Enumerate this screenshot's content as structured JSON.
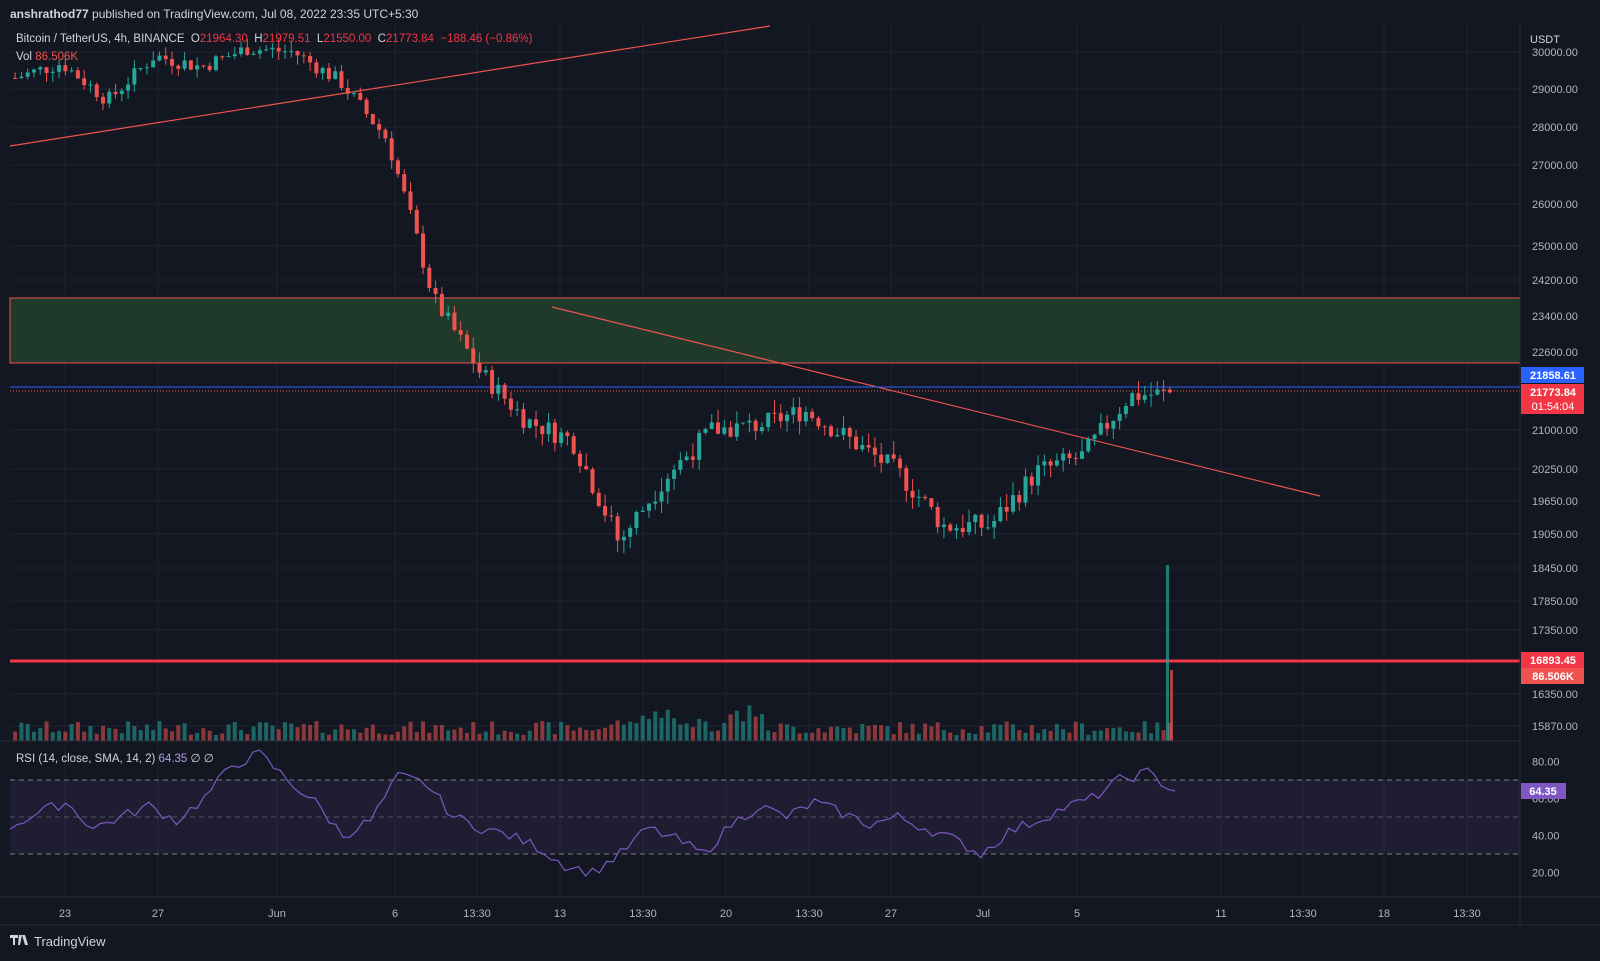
{
  "header": {
    "publisher": "anshrathod77",
    "published_text": "published on TradingView.com, Jul 08, 2022 23:35 UTC+5:30"
  },
  "legend": {
    "symbol": "Bitcoin / TetherUS, 4h, BINANCE",
    "open_label": "O",
    "open": "21964.30",
    "high_label": "H",
    "high": "21979.51",
    "low_label": "L",
    "low": "21550.00",
    "close_label": "C",
    "close": "21773.84",
    "change": "−188.46 (−0.86%)",
    "vol_label": "Vol",
    "vol": "86.506K"
  },
  "rsi_legend": {
    "label": "RSI (14, close, SMA, 14, 2)",
    "value": "64.35",
    "extra": "∅ ∅"
  },
  "footer": {
    "logo_icon": "tradingview-logo-icon",
    "brand": "TradingView"
  },
  "colors": {
    "background": "#131722",
    "grid": "#1e2330",
    "up": "#26a69a",
    "down": "#ef5350",
    "blue_line": "#2962ff",
    "zone_fill": "#1f3a2a",
    "rsi_line": "#7e57c2",
    "text": "#b2b5be"
  },
  "chart_data": {
    "type": "candlestick",
    "symbol": "Bitcoin / TetherUS",
    "interval": "4h",
    "exchange": "BINANCE",
    "currency_label": "USDT",
    "price_axis_ticks": [
      30000,
      29000,
      28000,
      27000,
      26000,
      25000,
      24200,
      23400,
      22600,
      21000,
      20250,
      19650,
      19050,
      18450,
      17850,
      17350,
      16350,
      15870
    ],
    "price_range": [
      15600,
      30300
    ],
    "x_axis_labels": [
      "23",
      "27",
      "Jun",
      "6",
      "13:30",
      "13",
      "13:30",
      "20",
      "13:30",
      "27",
      "Jul",
      "5",
      "11",
      "13:30",
      "18",
      "13:30"
    ],
    "price_series_approx": [
      {
        "date": "May 20",
        "close": 29300
      },
      {
        "date": "May 23",
        "close": 29700
      },
      {
        "date": "May 27",
        "close": 28700
      },
      {
        "date": "May 30",
        "close": 29900
      },
      {
        "date": "Jun 1",
        "close": 29600
      },
      {
        "date": "Jun 6",
        "close": 30100
      },
      {
        "date": "Jun 9",
        "close": 30000
      },
      {
        "date": "Jun 10",
        "close": 29200
      },
      {
        "date": "Jun 12",
        "close": 27700
      },
      {
        "date": "Jun 13",
        "close": 23800
      },
      {
        "date": "Jun 14",
        "close": 22200
      },
      {
        "date": "Jun 15",
        "close": 21200
      },
      {
        "date": "Jun 16",
        "close": 20800
      },
      {
        "date": "Jun 18",
        "close": 18900
      },
      {
        "date": "Jun 19",
        "close": 20100
      },
      {
        "date": "Jun 21",
        "close": 21000
      },
      {
        "date": "Jun 23",
        "close": 21100
      },
      {
        "date": "Jun 25",
        "close": 21400
      },
      {
        "date": "Jun 27",
        "close": 20800
      },
      {
        "date": "Jun 29",
        "close": 20200
      },
      {
        "date": "Jul 1",
        "close": 19200
      },
      {
        "date": "Jul 3",
        "close": 19200
      },
      {
        "date": "Jul 5",
        "close": 20200
      },
      {
        "date": "Jul 6",
        "close": 20500
      },
      {
        "date": "Jul 7",
        "close": 21700
      },
      {
        "date": "Jul 8",
        "close": 21773.84
      }
    ],
    "horizontal_levels": [
      {
        "price": 23800,
        "style": "zone-top"
      },
      {
        "price": 22400,
        "style": "zone-bottom"
      },
      {
        "price": 21858.61,
        "label": "21858.61",
        "style": "blue"
      },
      {
        "price": 21773.84,
        "label": "21773.84",
        "style": "last-price"
      },
      {
        "price": 16893.45,
        "label": "16893.45",
        "style": "support"
      }
    ],
    "price_labels": {
      "blue": "21858.61",
      "last": "21773.84",
      "countdown": "01:54:04",
      "support": "16893.45",
      "volume": "86.506K",
      "rsi": "64.35"
    },
    "volume": {
      "last": "86.506K"
    },
    "rsi": {
      "period": 14,
      "value": 64.35,
      "axis_ticks": [
        80,
        60,
        40,
        20
      ],
      "upper_band": 70,
      "middle_band": 50,
      "lower_band": 30,
      "series_approx": [
        45,
        52,
        58,
        44,
        50,
        56,
        48,
        60,
        78,
        84,
        70,
        58,
        40,
        48,
        72,
        68,
        50,
        44,
        40,
        34,
        24,
        20,
        30,
        44,
        38,
        30,
        46,
        56,
        50,
        58,
        52,
        46,
        50,
        44,
        38,
        30,
        42,
        48,
        55,
        60,
        70,
        74,
        64
      ]
    }
  }
}
